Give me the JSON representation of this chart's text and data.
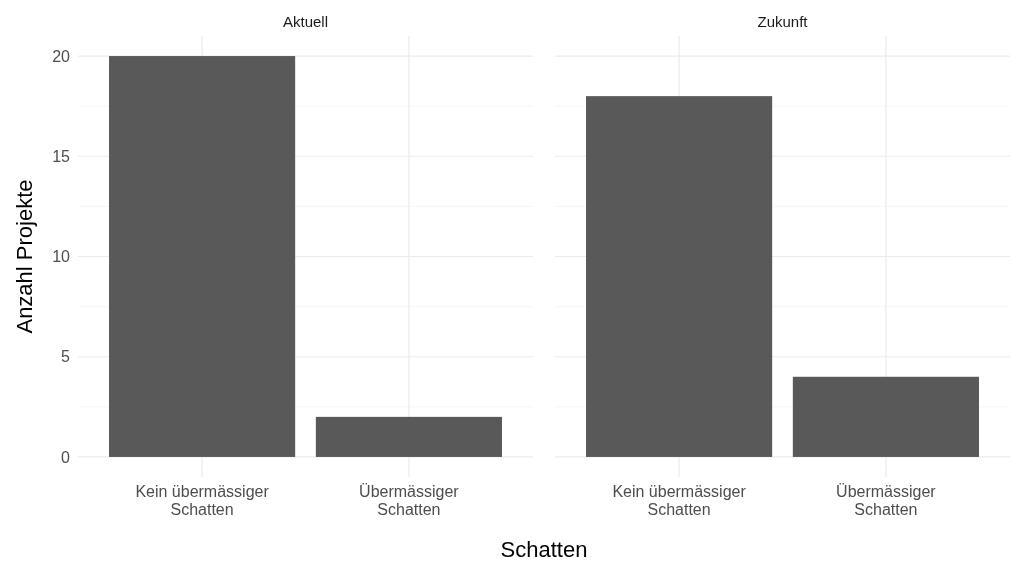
{
  "chart_data": [
    {
      "type": "bar",
      "title": "Aktuell",
      "xlabel": "Schatten",
      "ylabel": "Anzahl Projekte",
      "categories": [
        "Kein übermässiger Schatten",
        "Übermässiger Schatten"
      ],
      "values": [
        20,
        2
      ],
      "color": "#595959",
      "ylim": [
        -1,
        21
      ],
      "yticks": [
        0,
        {
          "value": 2.5,
          "label": null
        },
        5,
        {
          "value": 7.5,
          "label": null
        },
        10,
        {
          "value": 12.5,
          "label": null
        },
        15,
        {
          "value": 17.5,
          "label": null
        },
        20
      ],
      "grid": true
    },
    {
      "type": "bar",
      "title": "Zukunft",
      "categories": [
        "Kein übermässiger Schatten",
        "Übermässiger Schatten"
      ],
      "values": [
        18,
        4
      ],
      "color": "#595959",
      "ylim": [
        -1,
        21
      ],
      "yticks": [
        0,
        {
          "value": 2.5,
          "label": null
        },
        5,
        {
          "value": 7.5,
          "label": null
        },
        10,
        {
          "value": 12.5,
          "label": null
        },
        15,
        {
          "value": 17.5,
          "label": null
        },
        20
      ],
      "grid": true,
      "tick_labels": "x"
    }
  ]
}
